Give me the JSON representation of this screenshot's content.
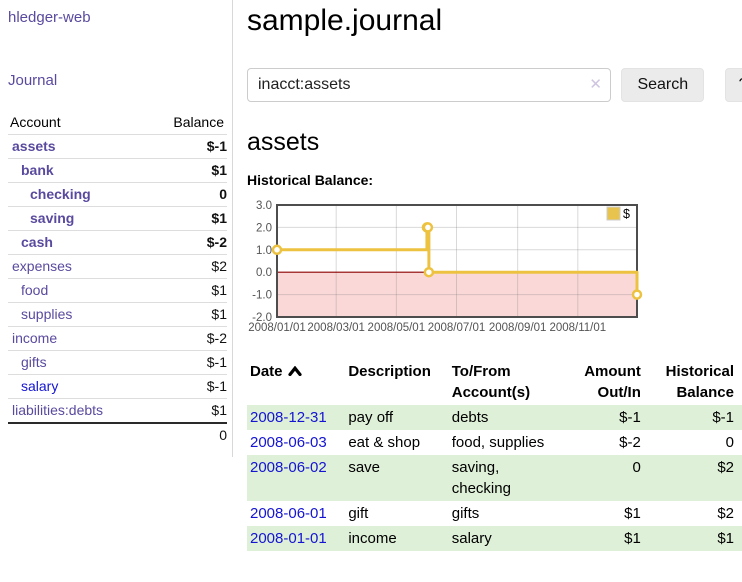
{
  "colors": {
    "accent_purple": "#5a4a9f",
    "link_blue": "#1414d2",
    "negative_strong": "#8b1a18",
    "negative_soft": "#b26360",
    "negative_table": "#7e1e1c",
    "row_green": "#dff0d8",
    "chart_line_gold": "#edc240",
    "chart_negative_fill": "#fbd8d8",
    "zero_line_red": "#8b0000"
  },
  "sidebar": {
    "brand": "hledger-web",
    "nav_journal": "Journal",
    "accounts_table": {
      "headers": [
        "Account",
        "Balance"
      ],
      "rows": [
        {
          "account": "assets",
          "depth": 1,
          "bold": true,
          "balance": "$-1"
        },
        {
          "account": "bank",
          "depth": 2,
          "bold": true,
          "balance": "$1"
        },
        {
          "account": "checking",
          "depth": 3,
          "bold": true,
          "balance": "0"
        },
        {
          "account": "saving",
          "depth": 3,
          "bold": true,
          "balance": "$1"
        },
        {
          "account": "cash",
          "depth": 2,
          "bold": true,
          "balance": "$-2"
        },
        {
          "account": "expenses",
          "depth": 1,
          "bold": false,
          "balance": "$2"
        },
        {
          "account": "food",
          "depth": 2,
          "bold": false,
          "balance": "$1"
        },
        {
          "account": "supplies",
          "depth": 2,
          "bold": false,
          "balance": "$1"
        },
        {
          "account": "income",
          "depth": 1,
          "bold": false,
          "balance": "$-2"
        },
        {
          "account": "gifts",
          "depth": 2,
          "bold": false,
          "balance": "$-1"
        },
        {
          "account": "salary",
          "depth": 2,
          "bold": false,
          "balance": "$-1",
          "blue_link": true
        },
        {
          "account": "liabilities:debts",
          "depth": 1,
          "bold": false,
          "balance": "$1"
        }
      ],
      "total": "0"
    }
  },
  "header": {
    "title": "sample.journal"
  },
  "search": {
    "value": "inacct:assets",
    "clear_icon": "✕",
    "button_label": "Search",
    "help_label": "?"
  },
  "main": {
    "account_heading": "assets",
    "chart_label": "Historical Balance:"
  },
  "chart_data": {
    "type": "line",
    "title": "Historical Balance",
    "style": "steps-after",
    "grid": true,
    "legend": [
      {
        "label": "$",
        "color": "#e8c34e"
      }
    ],
    "legend_position": "top-right",
    "ylim": [
      -2.0,
      3.0
    ],
    "yticks": [
      {
        "label": "3.0",
        "value": 3
      },
      {
        "label": "2.0",
        "value": 2
      },
      {
        "label": "1.0",
        "value": 1
      },
      {
        "label": "0.0",
        "value": 0
      },
      {
        "label": "-1.0",
        "value": -1
      },
      {
        "label": "-2.0",
        "value": -2
      }
    ],
    "xticks": [
      {
        "label": "2008/01/01",
        "day": 0
      },
      {
        "label": "2008/03/01",
        "day": 60
      },
      {
        "label": "2008/05/01",
        "day": 121
      },
      {
        "label": "2008/07/01",
        "day": 182
      },
      {
        "label": "2008/09/01",
        "day": 244
      },
      {
        "label": "2008/11/01",
        "day": 305
      }
    ],
    "x_total_days": 365,
    "negative_region": {
      "from": 0,
      "to": -2
    },
    "series": [
      {
        "name": "$",
        "points": [
          {
            "date": "2008-01-01",
            "day": 0,
            "value": 1
          },
          {
            "date": "2008-06-01",
            "day": 152,
            "value": 2
          },
          {
            "date": "2008-06-02",
            "day": 153,
            "value": 2
          },
          {
            "date": "2008-06-03",
            "day": 154,
            "value": 0
          },
          {
            "date": "2008-12-31",
            "day": 365,
            "value": -1
          }
        ]
      }
    ]
  },
  "register": {
    "headers": [
      {
        "label": "Date",
        "sorted": "ascending"
      },
      {
        "label": "Description"
      },
      {
        "label": "To/From Account(s)"
      },
      {
        "label": "Amount Out/In"
      },
      {
        "label": "Historical Balance"
      }
    ],
    "rows": [
      {
        "date": "2008-12-31",
        "description": "pay off",
        "accounts": "debts",
        "amount": "$-1",
        "balance": "$-1"
      },
      {
        "date": "2008-06-03",
        "description": "eat & shop",
        "accounts": "food, supplies",
        "amount": "$-2",
        "balance": "0"
      },
      {
        "date": "2008-06-02",
        "description": "save",
        "accounts": "saving, checking",
        "amount": "0",
        "balance": "$2"
      },
      {
        "date": "2008-06-01",
        "description": "gift",
        "accounts": "gifts",
        "amount": "$1",
        "balance": "$2"
      },
      {
        "date": "2008-01-01",
        "description": "income",
        "accounts": "salary",
        "amount": "$1",
        "balance": "$1"
      }
    ]
  }
}
